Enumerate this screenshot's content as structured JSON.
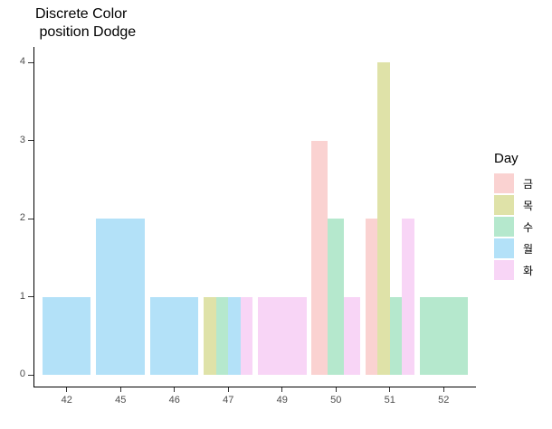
{
  "chart_data": {
    "type": "bar",
    "position": "dodge",
    "title_lines": [
      "Discrete Color",
      " position Dodge"
    ],
    "legend_title": "Day",
    "legend_position": "right",
    "categories": [
      "42",
      "45",
      "46",
      "47",
      "49",
      "50",
      "51",
      "52"
    ],
    "y_ticks": [
      "0",
      "1",
      "2",
      "3",
      "4"
    ],
    "ylim": [
      0,
      4
    ],
    "grid": false,
    "background": "#ffffff",
    "axis_color": "#000000",
    "tick_label_color": "#4d4d4d",
    "series": [
      {
        "name": "금",
        "color": "#FAD2D1",
        "values": [
          0,
          0,
          0,
          0,
          0,
          3,
          2,
          0
        ]
      },
      {
        "name": "목",
        "color": "#DFE2A8",
        "values": [
          0,
          0,
          0,
          1,
          0,
          0,
          4,
          0
        ]
      },
      {
        "name": "수",
        "color": "#B5E8CD",
        "values": [
          0,
          0,
          0,
          1,
          0,
          2,
          1,
          1
        ]
      },
      {
        "name": "월",
        "color": "#B3E1F8",
        "values": [
          1,
          2,
          1,
          1,
          0,
          0,
          0,
          0
        ]
      },
      {
        "name": "화",
        "color": "#F8D5F6",
        "values": [
          0,
          0,
          0,
          1,
          1,
          1,
          2,
          0
        ]
      }
    ]
  }
}
